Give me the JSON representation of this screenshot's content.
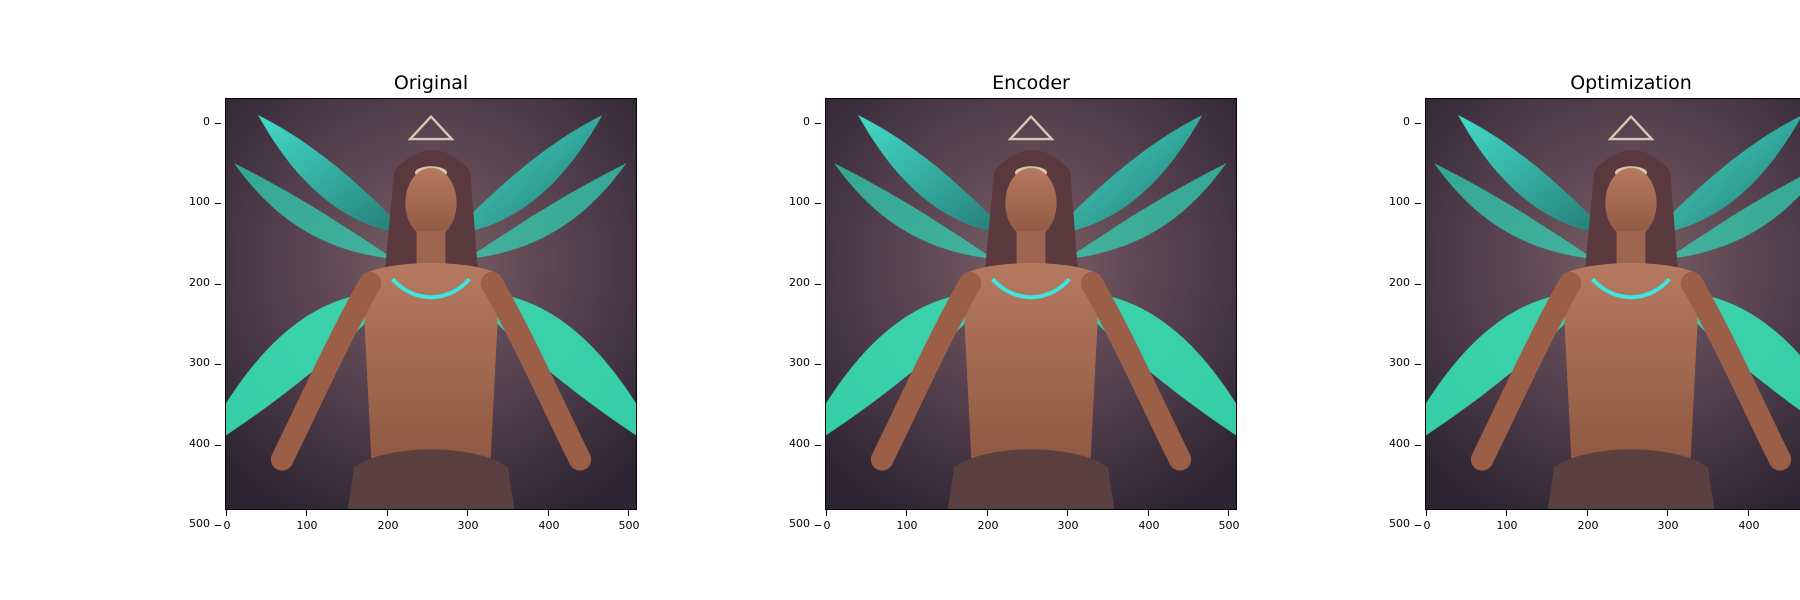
{
  "panels": [
    {
      "title": "Original"
    },
    {
      "title": "Encoder"
    },
    {
      "title": "Optimization"
    }
  ],
  "axes": {
    "x_ticks": [
      "0",
      "100",
      "200",
      "300",
      "400",
      "500"
    ],
    "y_ticks": [
      "0",
      "100",
      "200",
      "300",
      "400",
      "500"
    ],
    "xlim": [
      0,
      512
    ],
    "ylim": [
      512,
      0
    ]
  },
  "colors": {
    "background": "#ffffff",
    "feather_teal": "#2fd9b8",
    "feather_cyan": "#37e7e0",
    "skin": "#a86a4d",
    "hair": "#5b3a3f",
    "bg_dark": "#3d2f3a",
    "bg_muted": "#6f7a6a"
  },
  "image_description_icon": "portrait-illustration"
}
